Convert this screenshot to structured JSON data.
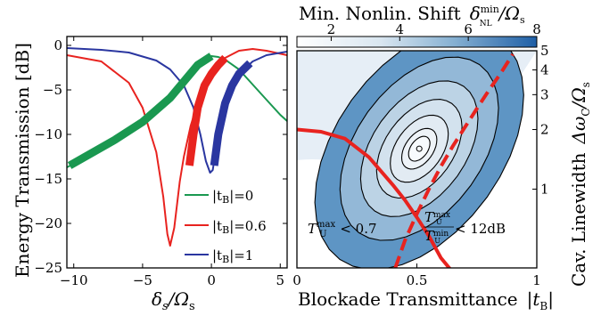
{
  "chart_data": [
    {
      "type": "line",
      "xlabel": "δs/Ωs",
      "ylabel": "Energy Transmission [dB]",
      "xlim": [
        -10.5,
        5.5
      ],
      "ylim": [
        -25,
        1
      ],
      "xticks": [
        "−10",
        "−5",
        "0",
        "5"
      ],
      "yticks": [
        "0",
        "−5",
        "−10",
        "−15",
        "−20",
        "−25"
      ],
      "grid": false,
      "legend_position": "bottom-right",
      "series": [
        {
          "name": "|tB|=0",
          "color": "#1a9850",
          "linewidth": "thin",
          "x": [
            -10.5,
            -9,
            -7,
            -5,
            -3,
            -2,
            -1,
            -0.5,
            0,
            0.5,
            1,
            2,
            3,
            4,
            5,
            5.5
          ],
          "y": [
            -13.7,
            -12.5,
            -10.6,
            -8.6,
            -5.9,
            -4.1,
            -2.2,
            -1.5,
            -1.2,
            -1.3,
            -1.6,
            -2.7,
            -4.4,
            -6.1,
            -7.8,
            -8.5
          ]
        },
        {
          "name": "|tB|=0.6",
          "color": "#e8231f",
          "linewidth": "thin",
          "x": [
            -10.5,
            -8,
            -6,
            -5,
            -4,
            -3.5,
            -3.2,
            -3,
            -2.7,
            -2.3,
            -2,
            -1.5,
            -1,
            0,
            1,
            2,
            3,
            4,
            5.5
          ],
          "y": [
            -1.1,
            -1.8,
            -4.2,
            -7.0,
            -12.0,
            -17.0,
            -21.2,
            -22.5,
            -20.5,
            -15.3,
            -12.5,
            -9.0,
            -6.5,
            -3.3,
            -1.4,
            -0.6,
            -0.4,
            -0.6,
            -1.1
          ]
        },
        {
          "name": "|tB|=1",
          "color": "#2a36a0",
          "linewidth": "thin",
          "x": [
            -10.5,
            -8,
            -6,
            -4,
            -3,
            -2,
            -1.3,
            -0.8,
            -0.4,
            -0.1,
            0.1,
            0.5,
            1,
            1.5,
            2,
            3,
            4,
            5.5
          ],
          "y": [
            -0.3,
            -0.5,
            -0.8,
            -1.7,
            -2.7,
            -4.5,
            -7.0,
            -10.0,
            -13.0,
            -14.3,
            -14.0,
            -10.0,
            -6.5,
            -4.5,
            -3.2,
            -1.8,
            -1.1,
            -0.7
          ]
        },
        {
          "name": "",
          "color": "#1a9850",
          "linewidth": "thick",
          "x": [
            -10.3,
            -7,
            -5,
            -3,
            -1,
            0
          ],
          "y": [
            -13.5,
            -10.6,
            -8.6,
            -5.9,
            -2.2,
            -1.2
          ]
        },
        {
          "name": "",
          "color": "#e8231f",
          "linewidth": "thick",
          "x": [
            -1.6,
            -1.3,
            -1,
            -0.5,
            0,
            0.5,
            1
          ],
          "y": [
            -13.5,
            -10,
            -7,
            -4.5,
            -3.2,
            -2.2,
            -1.4
          ]
        },
        {
          "name": "",
          "color": "#2a36a0",
          "linewidth": "thick",
          "x": [
            0.2,
            0.5,
            1,
            1.5,
            2,
            2.8
          ],
          "y": [
            -13.5,
            -10.0,
            -6.5,
            -4.5,
            -3.2,
            -2.0
          ]
        }
      ],
      "legend": [
        "|tB|=0",
        "|tB|=0.6",
        "|tB|=1"
      ]
    },
    {
      "type": "heatmap",
      "title": "Min. Nonlin. Shift δNLmin/Ωs",
      "xlabel": "Blockade Transmittance |tB|",
      "ylabel": "Cav. Linewidth ΔωC/Ωs",
      "xlim": [
        0,
        1
      ],
      "ylim": [
        0.4,
        5
      ],
      "y_scale": "log",
      "xticks": [
        "0",
        "0.5",
        "1"
      ],
      "yticks": [
        "1",
        "2",
        "3",
        "4",
        "5"
      ],
      "colorbar": {
        "range": [
          1,
          8
        ],
        "ticks": [
          "2",
          "4",
          "6",
          "8"
        ],
        "colors": [
          "#ffffff",
          "#1f5fa6"
        ]
      },
      "min_location": {
        "x": 0.51,
        "y": 1.6
      },
      "contour_levels": [
        1.2,
        1.5,
        2,
        2.6,
        3.3,
        4.2,
        5.3
      ],
      "boundaries": [
        {
          "name": "",
          "style": "solid",
          "color": "#e8231f",
          "x": [
            0,
            0.1,
            0.2,
            0.3,
            0.4,
            0.45,
            0.5,
            0.55,
            0.6,
            0.65
          ],
          "y": [
            2.0,
            1.95,
            1.8,
            1.45,
            1.05,
            0.88,
            0.72,
            0.58,
            0.45,
            0.38
          ]
        },
        {
          "name": "",
          "style": "dashed",
          "color": "#e8231f",
          "x": [
            0.41,
            0.45,
            0.5,
            0.55,
            0.6,
            0.65,
            0.7,
            0.75,
            0.8,
            0.85,
            0.9
          ],
          "y": [
            0.4,
            0.55,
            0.75,
            1.0,
            1.3,
            1.65,
            2.05,
            2.55,
            3.15,
            3.85,
            4.8
          ]
        }
      ],
      "annotations": [
        "TUmax < 0.7",
        "TUmax / TUmin < 12dB"
      ]
    }
  ],
  "labels": {
    "left_ylabel": "Energy Transmission [dB]",
    "left_xlabel_main": "δ",
    "left_xlabel_sub": "s",
    "left_xlabel_den": "/Ω",
    "left_xlabel_den_sub": "s",
    "legend_0": "|t",
    "legend_B": "B",
    "legend_vals": [
      "|=0",
      "|=0.6",
      "|=1"
    ],
    "right_title": "Min. Nonlin. Shift",
    "right_title_sym": "δ",
    "right_title_sup": "min",
    "right_title_sub": "NL",
    "right_title_den": "/Ω",
    "right_title_den_sub": "s",
    "right_xlabel": "Blockade Transmittance",
    "right_xlabel_sym": "|t",
    "right_xlabel_sub": "B",
    "right_xlabel_end": "|",
    "right_ylabel": "Cav. Linewidth",
    "right_ylabel_sym": "Δω",
    "right_ylabel_sub": "C",
    "right_ylabel_den": "/Ω",
    "right_ylabel_den_sub": "s",
    "ann1_T": "T",
    "ann1_sup": "max",
    "ann1_sub": "U",
    "ann1_rest": " < 0.7",
    "ann2_T": "T",
    "ann2_sup": "max",
    "ann2_sub": "U",
    "ann2_den_sup": "min",
    "ann2_rest": " < 12dB"
  }
}
